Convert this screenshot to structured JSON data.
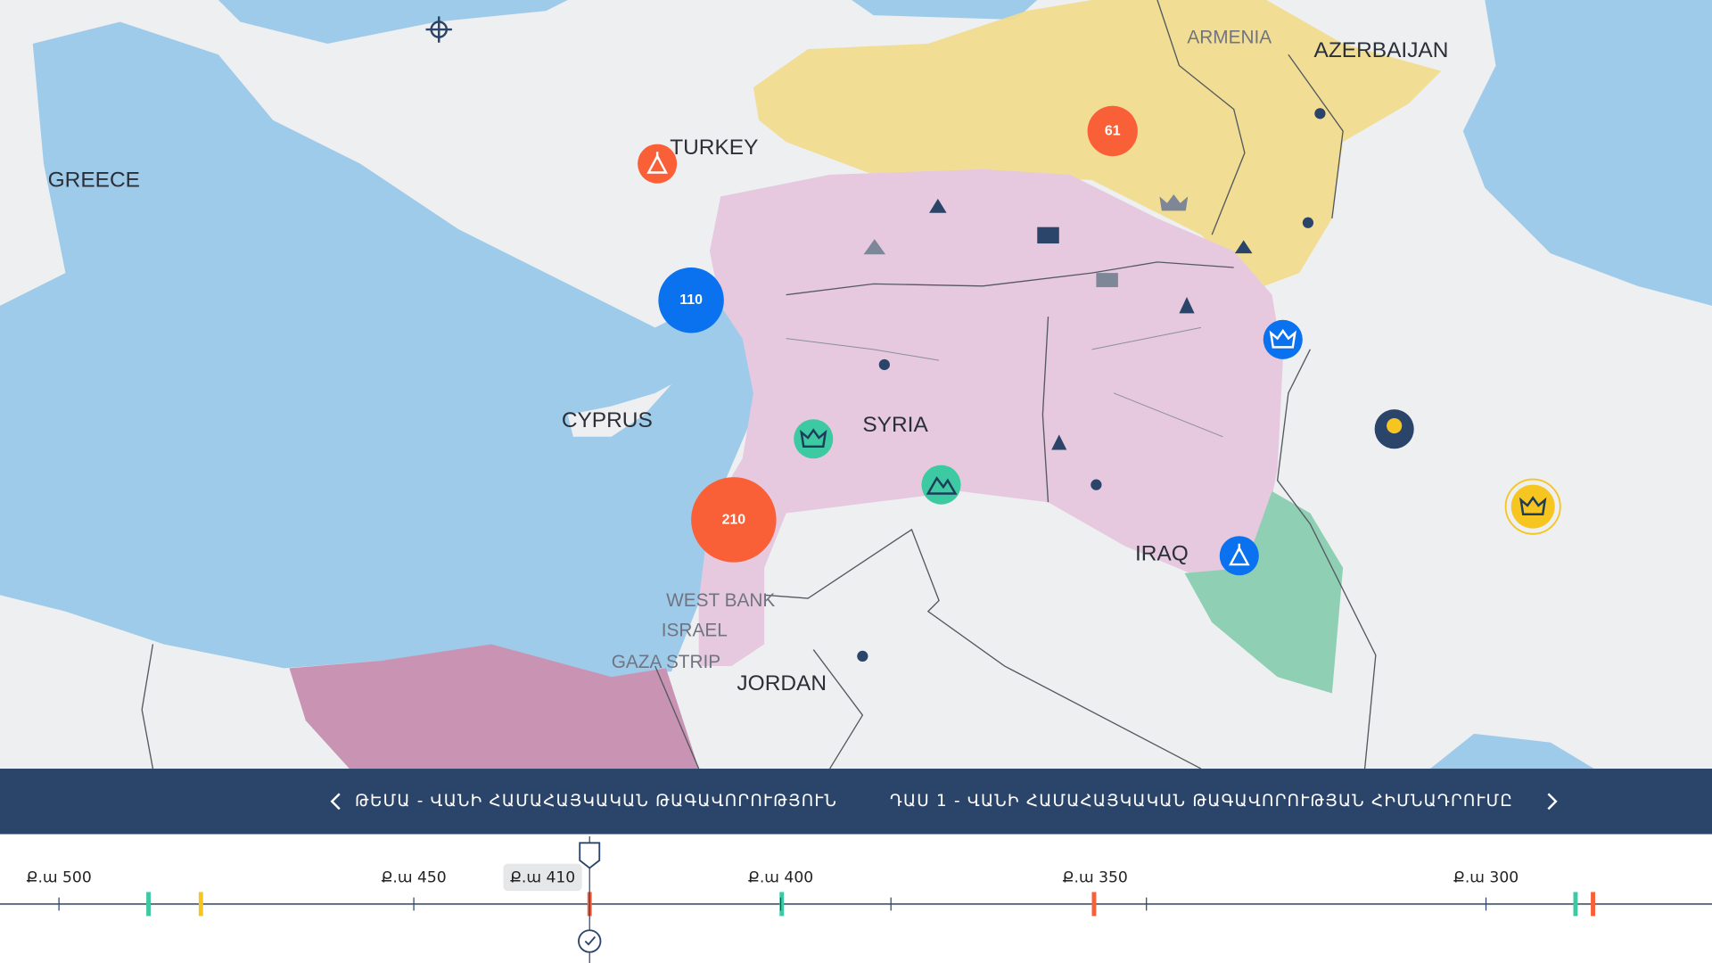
{
  "map": {
    "labels": [
      "GREECE",
      "TURKEY",
      "CYPRUS",
      "SYRIA",
      "IRAQ",
      "JORDAN",
      "ARMENIA",
      "AZERBAIJAN",
      "WEST BANK",
      "ISRAEL",
      "GAZA STRIP"
    ],
    "clusters": [
      {
        "count": "61",
        "color": "#fa6038"
      },
      {
        "count": "110",
        "color": "#0a72ef"
      },
      {
        "count": "210",
        "color": "#fa6038"
      }
    ]
  },
  "nav": {
    "topic": "ԹԵՄԱ - ՎԱՆԻ ՀԱՄԱՀԱՅԿԱԿԱՆ ԹԱԳԱՎՈՐՈՒԹՅՈՒՆ",
    "lesson": "ԴԱՍ 1 - ՎԱՆԻ ՀԱՄԱՀԱՅԿԱԿԱՆ ԹԱԳԱՎՈՐՈՒԹՅԱՆ ՀԻՄՆԱԴՐՈՒՄԸ"
  },
  "timeline": {
    "labels": [
      "Ք.ա 500",
      "Ք.ա 450",
      "Ք.ա 400",
      "Ք.ա 350",
      "Ք.ա 300"
    ],
    "current": "Ք.ա 410"
  }
}
